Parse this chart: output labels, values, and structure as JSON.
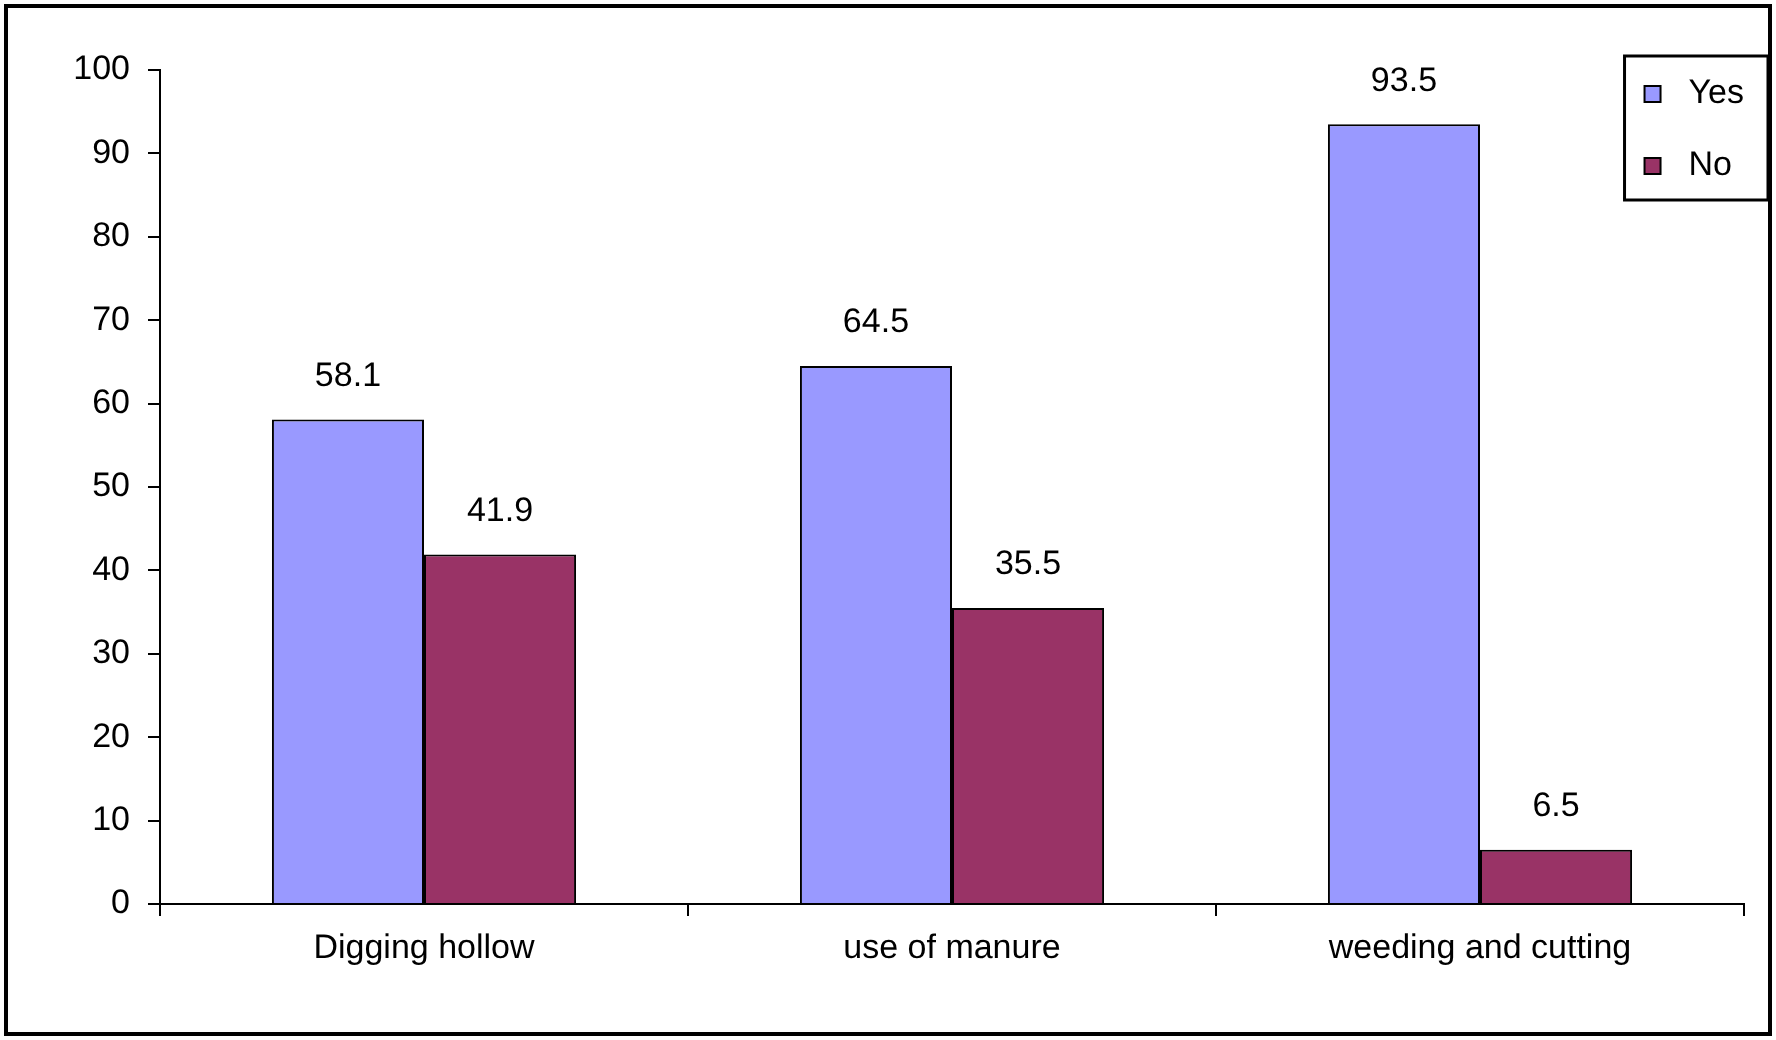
{
  "chart_data": {
    "type": "bar",
    "categories": [
      "Digging hollow",
      "use of manure",
      "weeding and cutting"
    ],
    "series": [
      {
        "name": "Yes",
        "color": "#9999ff",
        "values": [
          58.1,
          64.5,
          93.5
        ]
      },
      {
        "name": "No",
        "color": "#993366",
        "values": [
          41.9,
          35.5,
          6.5
        ]
      }
    ],
    "ylim": [
      0,
      100
    ],
    "yticks": [
      0,
      10,
      20,
      30,
      40,
      50,
      60,
      70,
      80,
      90,
      100
    ],
    "legend": "top right",
    "data_labels": true
  }
}
